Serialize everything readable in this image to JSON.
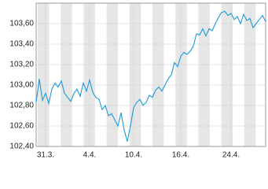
{
  "chart_data": {
    "type": "line",
    "x": [
      0,
      1,
      2,
      3,
      4,
      5,
      6,
      7,
      8,
      9,
      10,
      11,
      12,
      13,
      14,
      15,
      16,
      17,
      18,
      19,
      20,
      21,
      22,
      23,
      24,
      25,
      26,
      27,
      28,
      29,
      30,
      31,
      32,
      33,
      34,
      35,
      36,
      37,
      38,
      39,
      40,
      41,
      42,
      43,
      44,
      45,
      46,
      47,
      48,
      49,
      50,
      51,
      52,
      53,
      54,
      55,
      56,
      57,
      58,
      59,
      60,
      61,
      62,
      63,
      64,
      65,
      66,
      67,
      68,
      69,
      70,
      71,
      72,
      73
    ],
    "series": [
      {
        "color": "#1a9bd7",
        "values": [
          102.83,
          103.06,
          102.85,
          102.92,
          102.82,
          102.96,
          103.02,
          102.98,
          103.04,
          102.92,
          102.88,
          102.84,
          102.92,
          102.96,
          102.89,
          103.02,
          102.94,
          103.05,
          102.93,
          102.88,
          102.86,
          102.76,
          102.8,
          102.7,
          102.72,
          102.66,
          102.6,
          102.73,
          102.56,
          102.45,
          102.6,
          102.78,
          102.83,
          102.86,
          102.8,
          102.83,
          102.9,
          102.88,
          102.95,
          102.98,
          102.94,
          103.0,
          103.06,
          103.1,
          103.22,
          103.18,
          103.28,
          103.32,
          103.3,
          103.33,
          103.38,
          103.5,
          103.49,
          103.55,
          103.48,
          103.55,
          103.53,
          103.6,
          103.66,
          103.71,
          103.72,
          103.68,
          103.7,
          103.64,
          103.67,
          103.6,
          103.69,
          103.63,
          103.65,
          103.56,
          103.6,
          103.64,
          103.68,
          103.62
        ]
      }
    ],
    "xlim": [
      0,
      73
    ],
    "xticks": [
      {
        "value": 3,
        "label": "31.3."
      },
      {
        "value": 17,
        "label": "4.4."
      },
      {
        "value": 31,
        "label": "10.4."
      },
      {
        "value": 46,
        "label": "16.4."
      },
      {
        "value": 62,
        "label": "24.4."
      }
    ],
    "ylim": [
      102.4,
      103.8
    ],
    "yticks": [
      {
        "value": 102.4,
        "label": "102,40"
      },
      {
        "value": 102.6,
        "label": "102,60"
      },
      {
        "value": 102.8,
        "label": "102,80"
      },
      {
        "value": 103.0,
        "label": "103,00"
      },
      {
        "value": 103.2,
        "label": "103,20"
      },
      {
        "value": 103.4,
        "label": "103,40"
      },
      {
        "value": 103.6,
        "label": "103,60"
      }
    ],
    "grid": true
  }
}
